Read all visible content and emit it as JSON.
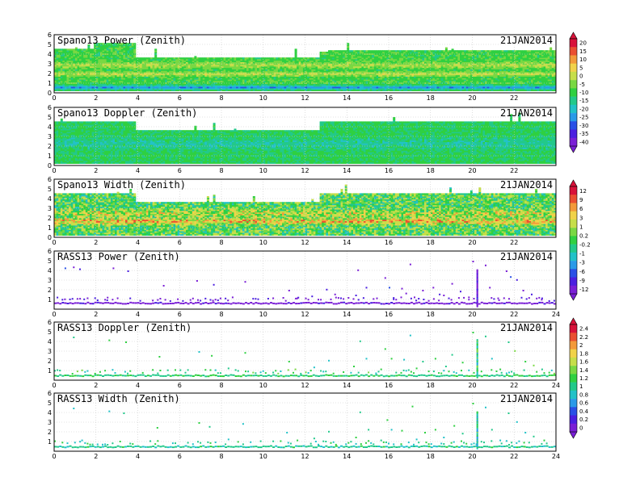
{
  "chart_data": [
    {
      "type": "heatmap",
      "title": "Spano13 Power (Zenith)",
      "date": "21JAN2014",
      "x_ticks": [
        "0",
        "2",
        "4",
        "6",
        "8",
        "10",
        "12",
        "14",
        "16",
        "18",
        "20",
        "22"
      ],
      "y_ticks": [
        "0",
        "1",
        "2",
        "3",
        "4",
        "5",
        "6"
      ],
      "xlim": [
        0,
        24
      ],
      "ylim": [
        0,
        6
      ],
      "colorbar": {
        "ticks": [
          "20",
          "15",
          "10",
          "5",
          "0",
          "-5",
          "-10",
          "-15",
          "-20",
          "-25",
          "-30",
          "-35",
          "-40"
        ],
        "range": [
          -45,
          20
        ]
      },
      "profile": {
        "top_height": [
          [
            0,
            4.4
          ],
          [
            1.9,
            5.1
          ],
          [
            3.9,
            3.5
          ],
          [
            12.6,
            3.5
          ],
          [
            12.6,
            4.2
          ],
          [
            13.0,
            4.3
          ],
          [
            24,
            4.3
          ]
        ],
        "base_value": -12,
        "bands": [
          {
            "y": 0.5,
            "width": 0.35,
            "value": -28
          },
          {
            "y": 2.8,
            "width": 0.5,
            "value": -4
          },
          {
            "y": 1.9,
            "width": 0.35,
            "value": -2
          }
        ]
      }
    },
    {
      "type": "heatmap",
      "title": "Spano13 Doppler (Zenith)",
      "date": "21JAN2014",
      "x_ticks": [
        "0",
        "2",
        "4",
        "6",
        "8",
        "10",
        "12",
        "14",
        "16",
        "18",
        "20",
        "22"
      ],
      "y_ticks": [
        "0",
        "1",
        "2",
        "3",
        "4",
        "5",
        "6"
      ],
      "xlim": [
        0,
        24
      ],
      "ylim": [
        0,
        6
      ],
      "colorbar": null,
      "profile": {
        "top_height": [
          [
            0,
            4.5
          ],
          [
            3.9,
            3.5
          ],
          [
            12.6,
            3.5
          ],
          [
            12.6,
            4.5
          ],
          [
            24,
            4.5
          ]
        ],
        "base_value": -14,
        "bands": [
          {
            "y": 2.2,
            "width": 1.0,
            "value": -19
          }
        ]
      }
    },
    {
      "type": "heatmap",
      "title": "Spano13 Width (Zenith)",
      "date": "21JAN2014",
      "x_ticks": [
        "0",
        "2",
        "4",
        "6",
        "8",
        "10",
        "12",
        "14",
        "16",
        "18",
        "20",
        "22"
      ],
      "y_ticks": [
        "0",
        "1",
        "2",
        "3",
        "4",
        "5",
        "6"
      ],
      "xlim": [
        0,
        24
      ],
      "ylim": [
        0,
        6
      ],
      "colorbar": {
        "ticks": [
          "12",
          "9",
          "6",
          "3",
          "1",
          "0.2",
          "-0.2",
          "-1",
          "-3",
          "-6",
          "-9",
          "-12"
        ],
        "range": [
          -13,
          13
        ]
      },
      "profile": {
        "top_height": [
          [
            0,
            4.5
          ],
          [
            3.9,
            3.5
          ],
          [
            12.6,
            3.5
          ],
          [
            12.6,
            4.5
          ],
          [
            24,
            4.4
          ]
        ],
        "base_value": 0.5,
        "bands": [
          {
            "y": 1.6,
            "width": 0.5,
            "value": 7
          },
          {
            "y": 2.4,
            "width": 0.6,
            "value": 4
          }
        ]
      }
    },
    {
      "type": "scatter",
      "title": "RASS13 Power (Zenith)",
      "date": "21JAN2014",
      "x_ticks": [
        "0",
        "2",
        "4",
        "6",
        "8",
        "10",
        "12",
        "14",
        "16",
        "18",
        "20",
        "22",
        "24"
      ],
      "y_ticks": [
        "1",
        "2",
        "3",
        "4",
        "5",
        "6"
      ],
      "xlim": [
        0,
        24
      ],
      "ylim": [
        0,
        6
      ],
      "colorbar": null,
      "line": {
        "y": 0.7,
        "value": -12
      },
      "spike": {
        "x": 20.2,
        "y_max": 4.2
      },
      "points": [
        [
          0.9,
          4.4
        ],
        [
          0.5,
          4.3
        ],
        [
          1.4,
          1.1
        ],
        [
          1.2,
          4.2
        ],
        [
          2.5,
          1.0
        ],
        [
          2.8,
          4.3
        ],
        [
          3.5,
          4.0
        ],
        [
          5.2,
          2.5
        ],
        [
          6.8,
          3.0
        ],
        [
          7.6,
          2.6
        ],
        [
          8.5,
          1.3
        ],
        [
          9.1,
          2.9
        ],
        [
          11.2,
          2.0
        ],
        [
          11.6,
          1.2
        ],
        [
          12.3,
          1.4
        ],
        [
          13.0,
          2.1
        ],
        [
          13.4,
          1.6
        ],
        [
          14.4,
          1.5
        ],
        [
          14.5,
          4.1
        ],
        [
          14.9,
          2.3
        ],
        [
          15.4,
          1.2
        ],
        [
          15.8,
          3.3
        ],
        [
          16.0,
          2.3
        ],
        [
          16.2,
          1.1
        ],
        [
          16.6,
          2.2
        ],
        [
          16.8,
          1.7
        ],
        [
          17.0,
          4.7
        ],
        [
          17.2,
          1.3
        ],
        [
          17.6,
          2.0
        ],
        [
          18.1,
          2.3
        ],
        [
          18.4,
          1.6
        ],
        [
          18.6,
          1.5
        ],
        [
          19.0,
          2.7
        ],
        [
          19.4,
          1.9
        ],
        [
          19.8,
          1.3
        ],
        [
          20.0,
          5.0
        ],
        [
          20.6,
          4.6
        ],
        [
          20.8,
          2.3
        ],
        [
          21.2,
          1.2
        ],
        [
          21.6,
          4.0
        ],
        [
          21.8,
          3.4
        ],
        [
          22.1,
          3.1
        ],
        [
          22.4,
          2.0
        ],
        [
          22.8,
          1.6
        ],
        [
          23.3,
          1.2
        ]
      ]
    },
    {
      "type": "scatter",
      "title": "RASS13 Doppler (Zenith)",
      "date": "21JAN2014",
      "x_ticks": [
        "0",
        "2",
        "4",
        "6",
        "8",
        "10",
        "12",
        "14",
        "16",
        "18",
        "20",
        "22",
        "24"
      ],
      "y_ticks": [
        "1",
        "2",
        "3",
        "4",
        "5",
        "6"
      ],
      "xlim": [
        0,
        24
      ],
      "ylim": [
        0,
        6
      ],
      "colorbar": {
        "ticks": [
          "2.4",
          "2.2",
          "2",
          "1.8",
          "1.6",
          "1.4",
          "1.2",
          "1",
          "0.8",
          "0.6",
          "0.4",
          "0.2",
          "0"
        ],
        "range": [
          -0.2,
          2.6
        ]
      },
      "line": {
        "y": 0.55,
        "value": 1.05
      },
      "spike": {
        "x": 20.2,
        "y_max": 4.3
      },
      "points": [
        [
          0.9,
          4.5
        ],
        [
          1.3,
          1.1
        ],
        [
          2.6,
          4.2
        ],
        [
          3.4,
          4.0
        ],
        [
          5.0,
          2.5
        ],
        [
          6.9,
          3.0
        ],
        [
          7.5,
          2.6
        ],
        [
          8.3,
          1.3
        ],
        [
          9.1,
          2.9
        ],
        [
          11.2,
          2.0
        ],
        [
          11.5,
          1.2
        ],
        [
          12.4,
          1.4
        ],
        [
          13.1,
          2.1
        ],
        [
          14.3,
          1.5
        ],
        [
          14.6,
          4.1
        ],
        [
          14.9,
          2.3
        ],
        [
          15.6,
          1.2
        ],
        [
          15.8,
          3.3
        ],
        [
          16.1,
          2.3
        ],
        [
          16.7,
          2.2
        ],
        [
          17.0,
          4.7
        ],
        [
          17.3,
          1.3
        ],
        [
          17.6,
          2.0
        ],
        [
          18.2,
          2.3
        ],
        [
          18.7,
          1.5
        ],
        [
          19.0,
          2.7
        ],
        [
          19.5,
          1.9
        ],
        [
          20.0,
          5.0
        ],
        [
          20.6,
          4.6
        ],
        [
          20.9,
          2.3
        ],
        [
          21.3,
          1.2
        ],
        [
          21.7,
          4.0
        ],
        [
          22.0,
          3.1
        ],
        [
          22.5,
          2.0
        ],
        [
          22.9,
          1.6
        ],
        [
          23.3,
          1.2
        ]
      ]
    },
    {
      "type": "scatter",
      "title": "RASS13 Width (Zenith)",
      "date": "21JAN2014",
      "x_ticks": [
        "0",
        "2",
        "4",
        "6",
        "8",
        "10",
        "12",
        "14",
        "16",
        "18",
        "20",
        "22",
        "24"
      ],
      "y_ticks": [
        "1",
        "2",
        "3",
        "4",
        "5",
        "6"
      ],
      "xlim": [
        0,
        24
      ],
      "ylim": [
        0,
        6
      ],
      "colorbar": null,
      "line": {
        "y": 0.55,
        "value": 0.95
      },
      "spike": {
        "x": 20.2,
        "y_max": 4.2
      },
      "points": [
        [
          0.9,
          4.5
        ],
        [
          1.3,
          1.2
        ],
        [
          2.6,
          4.2
        ],
        [
          3.3,
          4.0
        ],
        [
          4.9,
          2.5
        ],
        [
          6.9,
          3.0
        ],
        [
          7.4,
          2.6
        ],
        [
          8.3,
          1.3
        ],
        [
          9.0,
          2.9
        ],
        [
          11.1,
          2.0
        ],
        [
          11.6,
          1.2
        ],
        [
          12.4,
          1.4
        ],
        [
          13.1,
          2.1
        ],
        [
          14.4,
          1.5
        ],
        [
          14.6,
          4.1
        ],
        [
          15.0,
          2.3
        ],
        [
          15.6,
          1.2
        ],
        [
          15.9,
          3.3
        ],
        [
          16.1,
          2.3
        ],
        [
          16.6,
          2.2
        ],
        [
          17.1,
          4.7
        ],
        [
          17.3,
          1.3
        ],
        [
          17.7,
          2.0
        ],
        [
          18.2,
          2.3
        ],
        [
          18.6,
          1.5
        ],
        [
          19.1,
          2.7
        ],
        [
          19.5,
          1.9
        ],
        [
          20.0,
          5.0
        ],
        [
          20.6,
          4.6
        ],
        [
          20.9,
          2.3
        ],
        [
          21.3,
          1.2
        ],
        [
          21.7,
          4.0
        ],
        [
          22.1,
          3.1
        ],
        [
          22.5,
          2.0
        ],
        [
          22.9,
          1.6
        ],
        [
          23.4,
          1.2
        ]
      ]
    }
  ],
  "colors": {
    "palette": [
      "#7a1fd6",
      "#4b1fe0",
      "#2a50e6",
      "#2a9ae8",
      "#22c2c8",
      "#22c98a",
      "#2fd041",
      "#79d843",
      "#c6de4a",
      "#f1d24a",
      "#f39a3a",
      "#ea4f31",
      "#d8123a"
    ]
  }
}
